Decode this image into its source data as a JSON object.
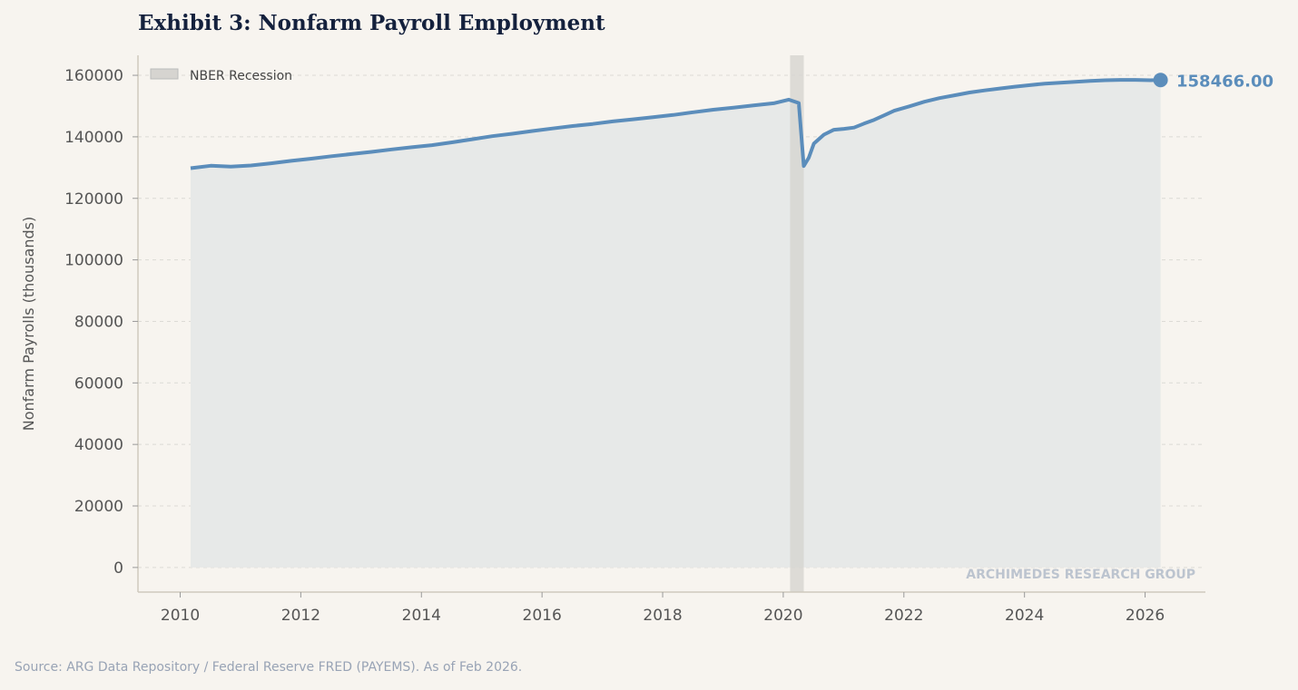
{
  "title": "Exhibit 3: Nonfarm Payroll Employment",
  "source": "Source: ARG Data Repository / Federal Reserve FRED (PAYEMS). As of Feb 2026.",
  "watermark": "ARCHIMEDES RESEARCH GROUP",
  "colors": {
    "line": "#5b8dbb",
    "fill": "#e7e9e8",
    "recession": "#d6d4d0",
    "title": "#14213d"
  },
  "chart_data": {
    "type": "area",
    "title": "Exhibit 3: Nonfarm Payroll Employment",
    "xlabel": "",
    "ylabel": "Nonfarm Payrolls (thousands)",
    "xlim": [
      2009.3,
      2027
    ],
    "ylim": [
      -8000,
      166500
    ],
    "xticks": [
      "2010",
      "2012",
      "2014",
      "2016",
      "2018",
      "2020",
      "2022",
      "2024",
      "2026"
    ],
    "yticks": [
      "0",
      "20000",
      "40000",
      "60000",
      "80000",
      "100000",
      "120000",
      "140000",
      "160000"
    ],
    "grid": true,
    "legend": {
      "position": "top-left",
      "entries": [
        "NBER Recession"
      ]
    },
    "recession": {
      "start": "2020-02",
      "end": "2020-04"
    },
    "last_value_label": "158466.00",
    "series": [
      {
        "x": [
          "2010-02",
          "2010-06",
          "2010-10",
          "2011-02",
          "2011-06",
          "2011-10",
          "2012-02",
          "2012-06",
          "2012-10",
          "2013-02",
          "2013-06",
          "2013-10",
          "2014-02",
          "2014-06",
          "2014-10",
          "2015-02",
          "2015-06",
          "2015-10",
          "2016-02",
          "2016-06",
          "2016-10",
          "2017-02",
          "2017-06",
          "2017-10",
          "2018-02",
          "2018-06",
          "2018-10",
          "2019-02",
          "2019-06",
          "2019-10",
          "2020-01",
          "2020-03",
          "2020-04",
          "2020-05",
          "2020-06",
          "2020-08",
          "2020-10",
          "2020-12",
          "2021-02",
          "2021-04",
          "2021-06",
          "2021-08",
          "2021-10",
          "2022-01",
          "2022-04",
          "2022-07",
          "2022-10",
          "2023-01",
          "2023-04",
          "2023-07",
          "2023-10",
          "2024-01",
          "2024-04",
          "2024-07",
          "2024-10",
          "2025-01",
          "2025-04",
          "2025-07",
          "2025-10",
          "2026-01",
          "2026-03"
        ],
        "y": [
          129800,
          130600,
          130300,
          130700,
          131400,
          132200,
          132900,
          133700,
          134400,
          135100,
          135900,
          136600,
          137300,
          138200,
          139200,
          140200,
          141000,
          141900,
          142700,
          143500,
          144200,
          145000,
          145700,
          146400,
          147100,
          148000,
          148800,
          149500,
          150200,
          150900,
          152100,
          151000,
          130500,
          133200,
          137800,
          140700,
          142300,
          142600,
          143000,
          144300,
          145500,
          147000,
          148500,
          149900,
          151400,
          152600,
          153500,
          154400,
          155100,
          155700,
          156300,
          156800,
          157300,
          157600,
          157900,
          158200,
          158400,
          158500,
          158500,
          158400,
          158466
        ]
      }
    ]
  }
}
